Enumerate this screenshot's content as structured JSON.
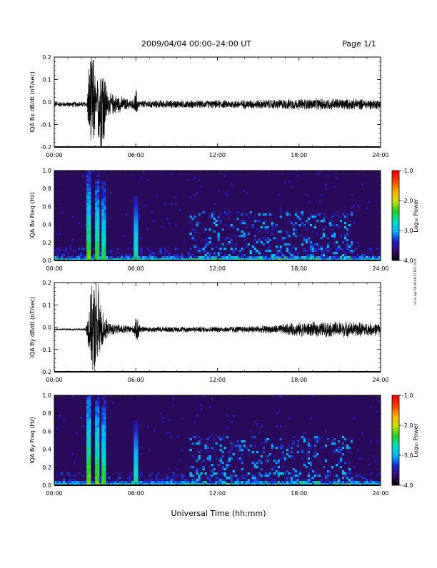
{
  "header": {
    "title": "2009/04/04  00:00–24:00 UT",
    "page": "Page 1/1"
  },
  "footer": {
    "xlabel": "Universal Time (hh:mm)"
  },
  "side_note": "rvt Fri Apr 29 08:08:27 EST 2016",
  "colors": {
    "trace": "#000000",
    "spectrogram_background": "#2a0a5a",
    "colormap": [
      "#000000",
      "#3a0a6a",
      "#2020c8",
      "#00b4ff",
      "#00e0c0",
      "#20d020",
      "#c8e000",
      "#ffb000",
      "#ff4000",
      "#ff0000"
    ]
  },
  "chart_data": [
    {
      "id": "bx-dbdt",
      "type": "line",
      "ylabel": "IQA Bx dB/dt (nT/sec)",
      "xlim": [
        0,
        24
      ],
      "ylim": [
        -0.2,
        0.2
      ],
      "x_ticks": [
        "00:00",
        "06:00",
        "12:00",
        "18:00",
        "24:00"
      ],
      "x_tick_values": [
        0,
        6,
        12,
        18,
        24
      ],
      "y_ticks": [
        "-0.2",
        "-0.1",
        "0.0",
        "0.1",
        "0.2"
      ],
      "y_tick_values": [
        -0.2,
        -0.1,
        0.0,
        0.1,
        0.2
      ],
      "baseline": -0.01,
      "noise_profile": [
        {
          "t": 0,
          "amp": 0.012
        },
        {
          "t": 2.4,
          "amp": 0.015
        },
        {
          "t": 2.6,
          "amp": 0.25
        },
        {
          "t": 2.9,
          "amp": 0.25
        },
        {
          "t": 3.1,
          "amp": 0.06
        },
        {
          "t": 3.3,
          "amp": 0.25
        },
        {
          "t": 3.6,
          "amp": 0.25
        },
        {
          "t": 3.9,
          "amp": 0.06
        },
        {
          "t": 5.8,
          "amp": 0.02
        },
        {
          "t": 6.0,
          "amp": 0.08
        },
        {
          "t": 6.2,
          "amp": 0.02
        },
        {
          "t": 12.0,
          "amp": 0.02
        },
        {
          "t": 16.0,
          "amp": 0.025
        },
        {
          "t": 20.0,
          "amp": 0.03
        },
        {
          "t": 24.0,
          "amp": 0.025
        }
      ]
    },
    {
      "id": "bx-freq",
      "type": "heatmap",
      "ylabel": "IQA Bx Freq (Hz)",
      "xlim": [
        0,
        24
      ],
      "ylim": [
        0,
        1.0
      ],
      "x_ticks": [
        "00:00",
        "06:00",
        "12:00",
        "18:00",
        "24:00"
      ],
      "x_tick_values": [
        0,
        6,
        12,
        18,
        24
      ],
      "y_ticks": [
        "0.0",
        "0.2",
        "0.4",
        "0.6",
        "0.8",
        "1.0"
      ],
      "y_tick_values": [
        0,
        0.2,
        0.4,
        0.6,
        0.8,
        1.0
      ],
      "colorbar": {
        "label": "Log₁₀ Power",
        "range": [
          -4.0,
          -1.0
        ],
        "ticks": [
          "-1.0",
          "-2.0",
          "-3.0",
          "-4.0"
        ],
        "tick_values": [
          -1.0,
          -2.0,
          -3.0,
          -4.0
        ]
      },
      "events": [
        {
          "t": 2.55,
          "width": 0.12,
          "level": -2.2
        },
        {
          "t": 3.15,
          "width": 0.1,
          "level": -2.3
        },
        {
          "t": 3.65,
          "width": 0.12,
          "level": -2.4
        },
        {
          "t": 6.0,
          "width": 0.1,
          "level": -3.0
        }
      ]
    },
    {
      "id": "by-dbdt",
      "type": "line",
      "ylabel": "IQA By dB/dt (nT/sec)",
      "xlim": [
        0,
        24
      ],
      "ylim": [
        -0.2,
        0.2
      ],
      "x_ticks": [
        "00:00",
        "06:00",
        "12:00",
        "18:00",
        "24:00"
      ],
      "x_tick_values": [
        0,
        6,
        12,
        18,
        24
      ],
      "y_ticks": [
        "-0.2",
        "-0.1",
        "0.0",
        "0.1",
        "0.2"
      ],
      "y_tick_values": [
        -0.2,
        -0.1,
        0.0,
        0.1,
        0.2
      ],
      "baseline": -0.01,
      "noise_profile": [
        {
          "t": 0,
          "amp": 0.004
        },
        {
          "t": 2.3,
          "amp": 0.006
        },
        {
          "t": 2.6,
          "amp": 0.15
        },
        {
          "t": 2.9,
          "amp": 0.25
        },
        {
          "t": 3.2,
          "amp": 0.25
        },
        {
          "t": 3.5,
          "amp": 0.1
        },
        {
          "t": 4.0,
          "amp": 0.03
        },
        {
          "t": 5.8,
          "amp": 0.02
        },
        {
          "t": 6.1,
          "amp": 0.07
        },
        {
          "t": 6.4,
          "amp": 0.015
        },
        {
          "t": 12.0,
          "amp": 0.015
        },
        {
          "t": 16.0,
          "amp": 0.02
        },
        {
          "t": 18.0,
          "amp": 0.035
        },
        {
          "t": 21.5,
          "amp": 0.04
        },
        {
          "t": 24.0,
          "amp": 0.03
        }
      ]
    },
    {
      "id": "by-freq",
      "type": "heatmap",
      "ylabel": "IQA By Freq (Hz)",
      "xlim": [
        0,
        24
      ],
      "ylim": [
        0,
        1.0
      ],
      "x_ticks": [
        "00:00",
        "06:00",
        "12:00",
        "18:00",
        "24:00"
      ],
      "x_tick_values": [
        0,
        6,
        12,
        18,
        24
      ],
      "y_ticks": [
        "0.0",
        "0.2",
        "0.4",
        "0.6",
        "0.8",
        "1.0"
      ],
      "y_tick_values": [
        0,
        0.2,
        0.4,
        0.6,
        0.8,
        1.0
      ],
      "colorbar": {
        "label": "Log₁₀ Power",
        "range": [
          -4.0,
          -1.0
        ],
        "ticks": [
          "-1.0",
          "-2.0",
          "-3.0",
          "-4.0"
        ],
        "tick_values": [
          -1.0,
          -2.0,
          -3.0,
          -4.0
        ]
      },
      "events": [
        {
          "t": 2.55,
          "width": 0.12,
          "level": -2.1
        },
        {
          "t": 3.15,
          "width": 0.1,
          "level": -2.2
        },
        {
          "t": 3.65,
          "width": 0.12,
          "level": -2.3
        },
        {
          "t": 6.0,
          "width": 0.1,
          "level": -3.1
        }
      ]
    }
  ]
}
